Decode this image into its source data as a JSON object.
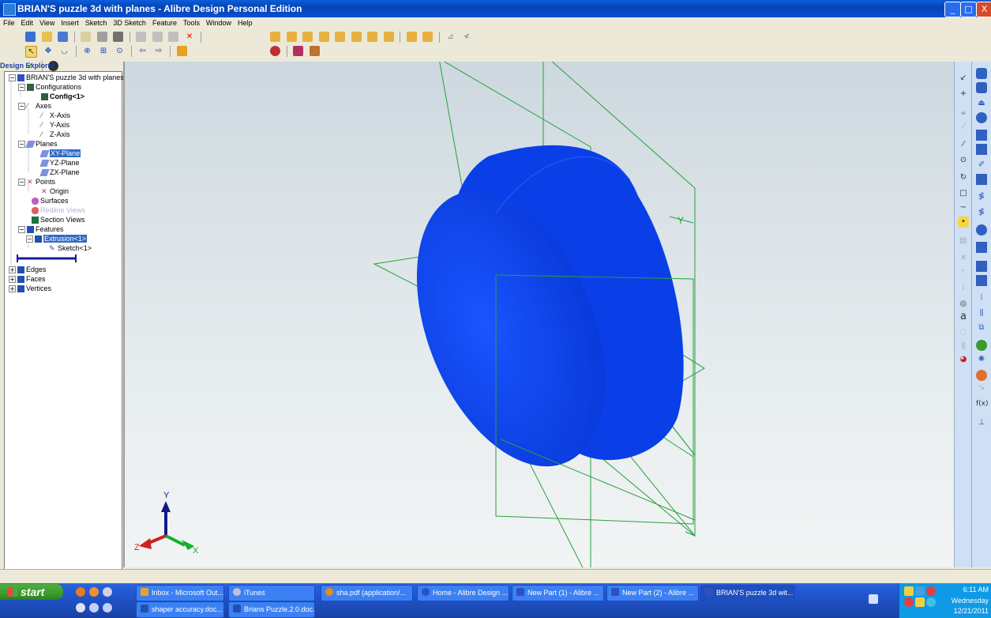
{
  "window": {
    "title": "BRIAN'S puzzle 3d with planes - Alibre Design Personal Edition",
    "min_label": "_",
    "max_label": "□",
    "close_label": "X"
  },
  "menu": [
    "File",
    "Edit",
    "View",
    "Insert",
    "Sketch",
    "3D Sketch",
    "Feature",
    "Tools",
    "Window",
    "Help"
  ],
  "explorer": {
    "header": "Design Explorer",
    "tree": [
      {
        "label": "BRIAN'S puzzle 3d with planes",
        "icon": "part-icon"
      },
      {
        "label": "Configurations",
        "icon": "configurations-icon"
      },
      {
        "label": "Config<1>",
        "icon": "config-icon"
      },
      {
        "label": "Axes",
        "icon": "axes-icon"
      },
      {
        "label": "X-Axis",
        "icon": "axis-icon"
      },
      {
        "label": "Y-Axis",
        "icon": "axis-icon"
      },
      {
        "label": "Z-Axis",
        "icon": "axis-icon"
      },
      {
        "label": "Planes",
        "icon": "planes-icon"
      },
      {
        "label": "XY-Plane",
        "icon": "plane-icon"
      },
      {
        "label": "YZ-Plane",
        "icon": "plane-icon"
      },
      {
        "label": "ZX-Plane",
        "icon": "plane-icon"
      },
      {
        "label": "Points",
        "icon": "points-icon"
      },
      {
        "label": "Origin",
        "icon": "origin-icon"
      },
      {
        "label": "Surfaces",
        "icon": "surfaces-icon"
      },
      {
        "label": "Redline Views",
        "icon": "redline-icon"
      },
      {
        "label": "Section Views",
        "icon": "section-icon"
      },
      {
        "label": "Features",
        "icon": "features-icon"
      },
      {
        "label": "Extrusion<1>",
        "icon": "extrusion-icon"
      },
      {
        "label": "Sketch<1>",
        "icon": "sketch-icon"
      },
      {
        "label": "Edges",
        "icon": "edges-icon"
      },
      {
        "label": "Faces",
        "icon": "faces-icon"
      },
      {
        "label": "Vertices",
        "icon": "vertices-icon"
      }
    ]
  },
  "triad": {
    "x": "X",
    "y": "Y",
    "z": "Z"
  },
  "plane_label": "Y",
  "colors": {
    "part": "#0a3fe8",
    "planes": "#27a13a",
    "selection": "#316ac5"
  },
  "taskbar": {
    "start_label": "start",
    "tasks_top": [
      {
        "label": "Inbox - Microsoft Out...",
        "icon": "outlook-icon"
      },
      {
        "label": "iTunes",
        "icon": "itunes-icon"
      },
      {
        "label": "sha.pdf (application/...",
        "icon": "firefox-icon"
      },
      {
        "label": "Home - Alibre Design ...",
        "icon": "alibre-icon"
      },
      {
        "label": "New Part (1) - Alibre ...",
        "icon": "alibre-icon"
      },
      {
        "label": "New Part (2) - Alibre ...",
        "icon": "alibre-icon"
      },
      {
        "label": "BRIAN'S puzzle 3d wit...",
        "icon": "alibre-icon"
      }
    ],
    "tasks_bottom": [
      {
        "label": "shaper accuracy.doc...",
        "icon": "word-icon"
      },
      {
        "label": "Brians Puzzle.2.0.doc...",
        "icon": "word-icon"
      }
    ],
    "clock_time": "6:11 AM",
    "clock_day": "Wednesday",
    "clock_date": "12/21/2011"
  }
}
